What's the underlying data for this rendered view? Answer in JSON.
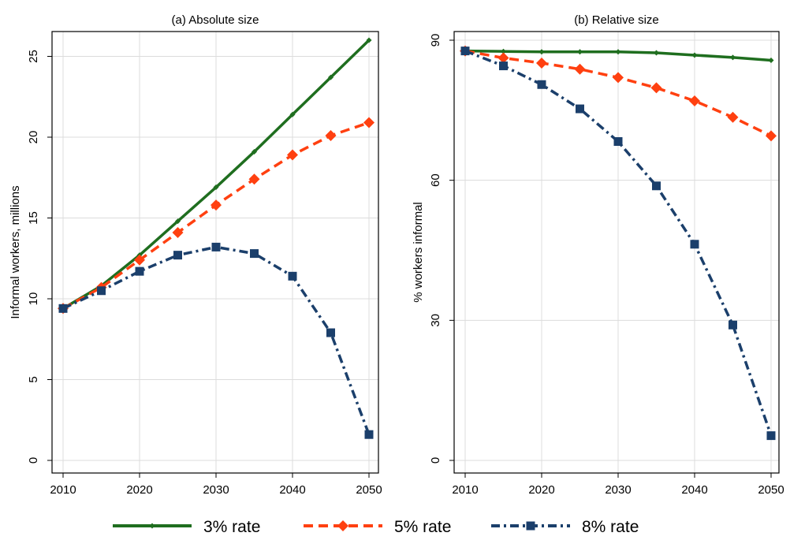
{
  "chart_data": [
    {
      "type": "line",
      "title": "(a) Absolute size",
      "xlabel": "",
      "ylabel": "Informal workers, millions",
      "xlim": [
        2010,
        2050
      ],
      "ylim": [
        0,
        26
      ],
      "xticks": [
        "2010",
        "2020",
        "2030",
        "2040",
        "2050"
      ],
      "yticks": [
        "0",
        "5",
        "10",
        "15",
        "20",
        "25"
      ],
      "grid": true,
      "x": [
        2010,
        2015,
        2020,
        2025,
        2030,
        2035,
        2040,
        2045,
        2050
      ],
      "series": [
        {
          "name": "3% rate",
          "values": [
            9.4,
            10.8,
            12.7,
            14.8,
            16.9,
            19.1,
            21.4,
            23.7,
            26.0
          ]
        },
        {
          "name": "5% rate",
          "values": [
            9.4,
            10.7,
            12.4,
            14.1,
            15.8,
            17.4,
            18.9,
            20.1,
            20.9
          ]
        },
        {
          "name": "8% rate",
          "values": [
            9.4,
            10.5,
            11.7,
            12.7,
            13.2,
            12.8,
            11.4,
            7.9,
            1.6
          ]
        }
      ]
    },
    {
      "type": "line",
      "title": "(b) Relative size",
      "xlabel": "",
      "ylabel": "% workers informal",
      "xlim": [
        2010,
        2050
      ],
      "ylim": [
        0,
        90
      ],
      "xticks": [
        "2010",
        "2020",
        "2030",
        "2040",
        "2050"
      ],
      "yticks": [
        "0",
        "30",
        "60",
        "90"
      ],
      "grid": true,
      "x": [
        2010,
        2015,
        2020,
        2025,
        2030,
        2035,
        2040,
        2045,
        2050
      ],
      "series": [
        {
          "name": "3% rate",
          "values": [
            87.7,
            87.6,
            87.5,
            87.5,
            87.5,
            87.3,
            86.8,
            86.3,
            85.7
          ]
        },
        {
          "name": "5% rate",
          "values": [
            87.7,
            86.2,
            85.1,
            83.8,
            82.0,
            79.8,
            77.0,
            73.5,
            69.5
          ]
        },
        {
          "name": "8% rate",
          "values": [
            87.7,
            84.5,
            80.5,
            75.3,
            68.3,
            58.8,
            46.3,
            29.0,
            5.3
          ]
        }
      ]
    }
  ],
  "legend": {
    "placement": "bottom",
    "items": [
      {
        "label": "3% rate",
        "color": "#1f6e1f",
        "marker": "small-diamond",
        "dash": "solid"
      },
      {
        "label": "5% rate",
        "color": "#ff4010",
        "marker": "diamond",
        "dash": "dash"
      },
      {
        "label": "8% rate",
        "color": "#1b3f6b",
        "marker": "square",
        "dash": "dash-dot"
      }
    ]
  }
}
